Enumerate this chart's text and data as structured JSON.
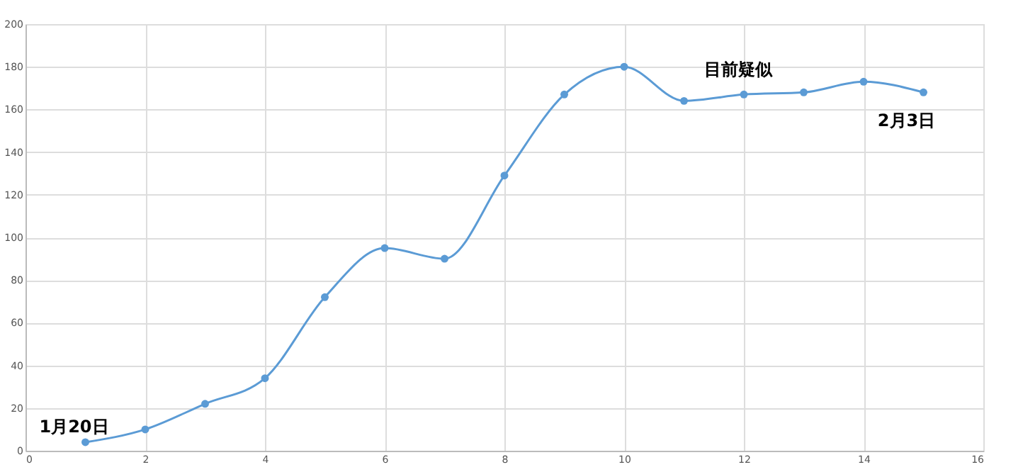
{
  "chart_data": {
    "type": "line",
    "x": [
      1,
      2,
      3,
      4,
      5,
      6,
      7,
      8,
      9,
      10,
      11,
      12,
      13,
      14,
      15
    ],
    "series": [
      {
        "color": "#5b9bd5",
        "values": [
          4,
          10,
          22,
          34,
          72,
          95,
          90,
          129,
          167,
          180,
          164,
          167,
          168,
          173,
          168
        ]
      }
    ],
    "xlim": [
      0,
      16
    ],
    "xticks": [
      0,
      2,
      4,
      6,
      8,
      10,
      12,
      14,
      16
    ],
    "ylim": [
      0,
      200
    ],
    "yticks": [
      0,
      20,
      40,
      60,
      80,
      100,
      120,
      140,
      160,
      180,
      200
    ],
    "grid": true,
    "marker": "circle",
    "line_style": "solid",
    "annotations": [
      {
        "text": "1月20日",
        "x": 1,
        "y": 4
      },
      {
        "text": "2月3日",
        "x": 15,
        "y": 168
      },
      "目前疑似"
    ]
  }
}
